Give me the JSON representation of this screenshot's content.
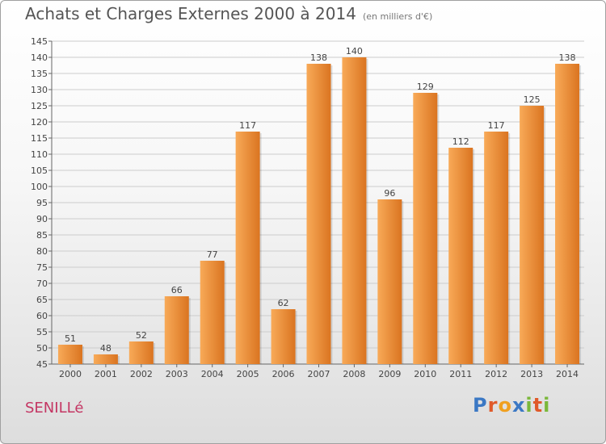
{
  "header": {
    "title": "Achats et Charges Externes 2000 à 2014",
    "unit": "(en milliers d'€)"
  },
  "footer": {
    "place": "SENILLé"
  },
  "logo": {
    "letters": [
      {
        "char": "P",
        "color": "#3b78c4"
      },
      {
        "char": "r",
        "color": "#e05a2a"
      },
      {
        "char": "o",
        "color": "#f0a020"
      },
      {
        "char": "x",
        "color": "#3b78c4"
      },
      {
        "char": "i",
        "color": "#7ab83a"
      },
      {
        "char": "t",
        "color": "#e05a2a"
      },
      {
        "char": "i",
        "color": "#7ab83a"
      }
    ]
  },
  "colors": {
    "bar_light": "#f8aa58",
    "bar_dark": "#da7420",
    "grid": "#cccccc"
  },
  "chart_data": {
    "type": "bar",
    "title": "Achats et Charges Externes 2000 à 2014",
    "subtitle": "(en milliers d'€)",
    "categories": [
      "2000",
      "2001",
      "2002",
      "2003",
      "2004",
      "2005",
      "2006",
      "2007",
      "2008",
      "2009",
      "2010",
      "2011",
      "2012",
      "2013",
      "2014"
    ],
    "values": [
      51,
      48,
      52,
      66,
      77,
      117,
      62,
      138,
      140,
      96,
      129,
      112,
      117,
      125,
      138
    ],
    "ylim": [
      45,
      145
    ],
    "ystep": 5,
    "grid": true
  }
}
